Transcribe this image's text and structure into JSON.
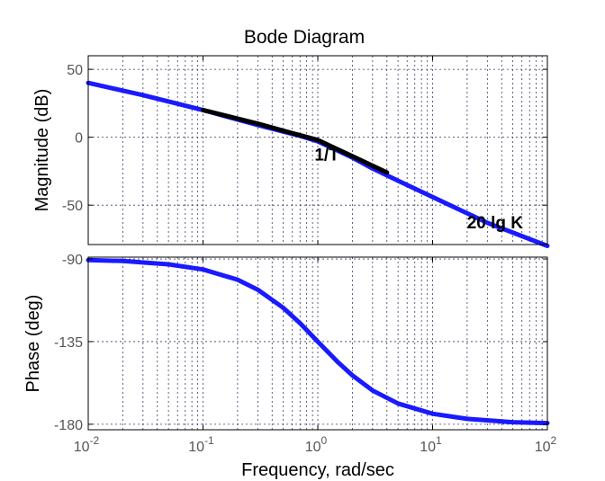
{
  "chart_data": {
    "type": "line",
    "title": "Bode Diagram",
    "xlabel": "Frequency, rad/sec",
    "x_scale": "log",
    "xlim": [
      0.01,
      100
    ],
    "x_ticks": [
      {
        "base": "10",
        "exp": "-2",
        "value": 0.01
      },
      {
        "base": "10",
        "exp": "-1",
        "value": 0.1
      },
      {
        "base": "10",
        "exp": "0",
        "value": 1
      },
      {
        "base": "10",
        "exp": "1",
        "value": 10
      },
      {
        "base": "10",
        "exp": "2",
        "value": 100
      }
    ],
    "grid": true,
    "subplots": [
      {
        "id": "magnitude",
        "ylabel": "Magnitude (dB)",
        "ylim": [
          -79,
          60
        ],
        "y_ticks": [
          {
            "label": "50",
            "value": 50
          },
          {
            "label": "0",
            "value": 0
          },
          {
            "label": "-50",
            "value": -50
          }
        ],
        "series": [
          {
            "color": "#1a1aff",
            "x": [
              0.01,
              0.03,
              0.1,
              0.3,
              0.7,
              1,
              1.5,
              2,
              3,
              5,
              10,
              30,
              100
            ],
            "y": [
              40,
              31,
              20,
              9,
              1,
              -3,
              -10,
              -15,
              -23,
              -32,
              -44,
              -63,
              -80
            ]
          },
          {
            "color": "#000000",
            "x": [
              0.1,
              0.3,
              0.6,
              1,
              2,
              4
            ],
            "y": [
              20,
              10,
              3,
              -2,
              -14,
              -26
            ]
          }
        ],
        "annotations": [
          {
            "text": "1/T",
            "x": 1.2,
            "y": -17
          },
          {
            "text": "20 lg K",
            "x": 35,
            "y": -67
          }
        ]
      },
      {
        "id": "phase",
        "ylabel": "Phase (deg)",
        "ylim": [
          -183,
          -89
        ],
        "y_ticks": [
          {
            "label": "-90",
            "value": -90
          },
          {
            "label": "-135",
            "value": -135
          },
          {
            "label": "-180",
            "value": -180
          }
        ],
        "series": [
          {
            "color": "#1a1aff",
            "x": [
              0.01,
              0.02,
              0.05,
              0.1,
              0.2,
              0.3,
              0.5,
              0.7,
              1,
              1.5,
              2,
              3,
              5,
              10,
              20,
              50,
              100
            ],
            "y": [
              -90.6,
              -91.1,
              -92.9,
              -95.7,
              -101.3,
              -106.7,
              -116.6,
              -125,
              -135,
              -146.3,
              -153.4,
              -161.6,
              -168.7,
              -174.3,
              -177.1,
              -178.9,
              -179.4
            ]
          }
        ]
      }
    ]
  }
}
